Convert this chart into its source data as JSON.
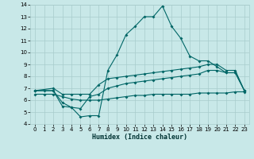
{
  "xlabel": "Humidex (Indice chaleur)",
  "xlim": [
    -0.5,
    23.5
  ],
  "ylim": [
    4,
    14
  ],
  "yticks": [
    4,
    5,
    6,
    7,
    8,
    9,
    10,
    11,
    12,
    13,
    14
  ],
  "xticks": [
    0,
    1,
    2,
    3,
    4,
    5,
    6,
    7,
    8,
    9,
    10,
    11,
    12,
    13,
    14,
    15,
    16,
    17,
    18,
    19,
    20,
    21,
    22,
    23
  ],
  "bg_color": "#c8e8e8",
  "grid_color": "#a8cccc",
  "line_color": "#006666",
  "line1_x": [
    0,
    1,
    2,
    3,
    4,
    5,
    6,
    7,
    8,
    9,
    10,
    11,
    12,
    13,
    14,
    15,
    16,
    17,
    18,
    19,
    20,
    21,
    22,
    23
  ],
  "line1_y": [
    6.8,
    6.8,
    6.8,
    5.8,
    5.4,
    4.6,
    4.7,
    4.7,
    8.5,
    9.8,
    11.5,
    12.2,
    13.0,
    13.0,
    13.9,
    12.2,
    11.2,
    9.7,
    9.3,
    9.3,
    8.8,
    8.3,
    8.3,
    6.8
  ],
  "line2_x": [
    0,
    2,
    3,
    4,
    5,
    6,
    7,
    8,
    9,
    10,
    11,
    12,
    13,
    14,
    15,
    16,
    17,
    18,
    19,
    20,
    21,
    22,
    23
  ],
  "line2_y": [
    6.8,
    7.0,
    6.5,
    6.5,
    6.5,
    6.5,
    7.3,
    7.8,
    7.9,
    8.0,
    8.1,
    8.2,
    8.3,
    8.4,
    8.5,
    8.6,
    8.7,
    8.8,
    9.0,
    9.0,
    8.5,
    8.5,
    6.8
  ],
  "line3_x": [
    0,
    2,
    3,
    4,
    5,
    6,
    7,
    8,
    9,
    10,
    11,
    12,
    13,
    14,
    15,
    16,
    17,
    18,
    19,
    20,
    21,
    22,
    23
  ],
  "line3_y": [
    6.8,
    6.8,
    5.5,
    5.4,
    5.3,
    6.3,
    6.5,
    7.0,
    7.2,
    7.4,
    7.5,
    7.6,
    7.7,
    7.8,
    7.9,
    8.0,
    8.1,
    8.2,
    8.5,
    8.5,
    8.3,
    8.3,
    6.8
  ],
  "line4_x": [
    0,
    1,
    2,
    3,
    4,
    5,
    6,
    7,
    8,
    9,
    10,
    11,
    12,
    13,
    14,
    15,
    16,
    17,
    18,
    19,
    20,
    21,
    22,
    23
  ],
  "line4_y": [
    6.5,
    6.5,
    6.5,
    6.3,
    6.1,
    6.0,
    6.0,
    6.0,
    6.1,
    6.2,
    6.3,
    6.4,
    6.4,
    6.5,
    6.5,
    6.5,
    6.5,
    6.5,
    6.6,
    6.6,
    6.6,
    6.6,
    6.7,
    6.7
  ]
}
